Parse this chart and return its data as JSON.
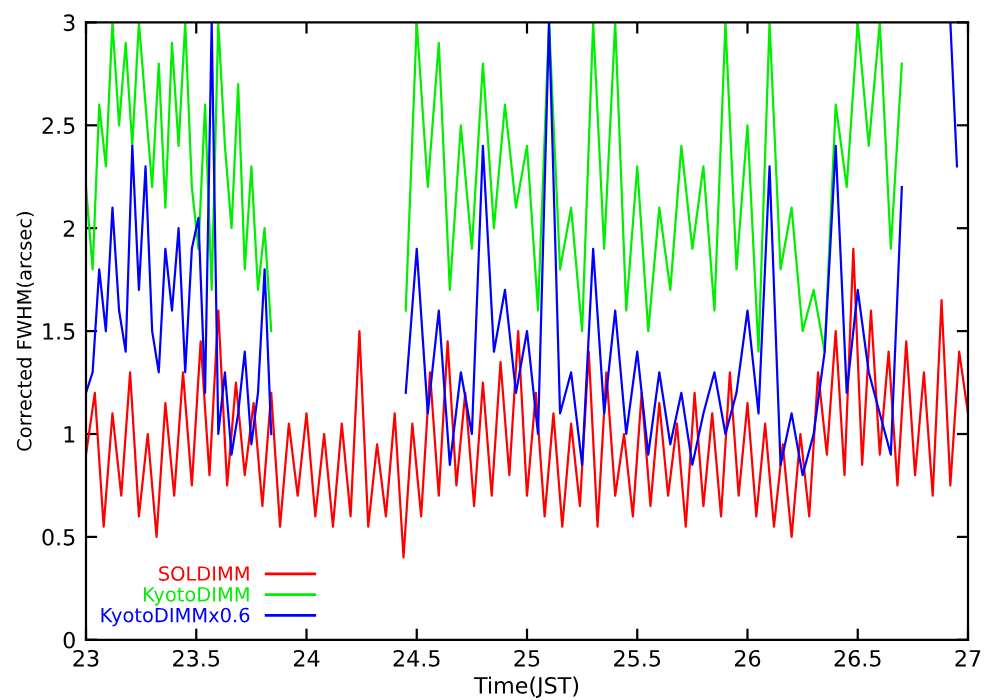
{
  "chart_data": {
    "type": "line",
    "xlabel": "Time(JST)",
    "ylabel": "Corrected FWHM(arcsec)",
    "xlim": [
      23,
      27
    ],
    "ylim": [
      0,
      3
    ],
    "xticks": [
      23,
      23.5,
      24,
      24.5,
      25,
      25.5,
      26,
      26.5,
      27
    ],
    "yticks": [
      0,
      0.5,
      1,
      1.5,
      2,
      2.5,
      3
    ],
    "grid": false,
    "legend": "bottom left",
    "marker": "none",
    "line_style": "solid",
    "series": [
      {
        "name": "SOLDIMM",
        "color": "#ff0000",
        "x": [
          23.0,
          23.04,
          23.08,
          23.12,
          23.16,
          23.2,
          23.24,
          23.28,
          23.32,
          23.36,
          23.4,
          23.44,
          23.48,
          23.52,
          23.56,
          23.6,
          23.64,
          23.68,
          23.72,
          23.76,
          23.8,
          23.84,
          23.88,
          23.92,
          23.96,
          24.0,
          24.04,
          24.08,
          24.12,
          24.16,
          24.2,
          24.24,
          24.28,
          24.32,
          24.36,
          24.4,
          24.44,
          24.48,
          24.52,
          24.56,
          24.6,
          24.64,
          24.68,
          24.72,
          24.76,
          24.8,
          24.84,
          24.88,
          24.92,
          24.96,
          25.0,
          25.04,
          25.08,
          25.12,
          25.16,
          25.2,
          25.24,
          25.28,
          25.32,
          25.36,
          25.4,
          25.44,
          25.48,
          25.52,
          25.56,
          25.6,
          25.64,
          25.68,
          25.72,
          25.76,
          25.8,
          25.84,
          25.88,
          25.92,
          25.96,
          26.0,
          26.04,
          26.08,
          26.12,
          26.16,
          26.2,
          26.24,
          26.28,
          26.32,
          26.36,
          26.4,
          26.44,
          26.48,
          26.52,
          26.56,
          26.6,
          26.64,
          26.68,
          26.72,
          26.76,
          26.8,
          26.84,
          26.88,
          26.92,
          26.96,
          27.0
        ],
        "values": [
          0.9,
          1.2,
          0.55,
          1.1,
          0.7,
          1.3,
          0.6,
          1.0,
          0.5,
          1.15,
          0.7,
          1.3,
          0.75,
          1.45,
          0.8,
          1.6,
          0.75,
          1.25,
          0.8,
          1.15,
          0.65,
          1.2,
          0.55,
          1.05,
          0.7,
          1.1,
          0.6,
          1.0,
          0.55,
          1.05,
          0.6,
          1.5,
          0.55,
          0.95,
          0.6,
          1.1,
          0.4,
          1.05,
          0.6,
          1.3,
          0.7,
          1.45,
          0.75,
          1.2,
          0.65,
          1.25,
          0.7,
          1.35,
          0.8,
          1.5,
          0.7,
          1.2,
          0.6,
          1.1,
          0.55,
          1.05,
          0.65,
          1.4,
          0.55,
          1.3,
          0.7,
          1.0,
          0.6,
          1.2,
          0.65,
          1.15,
          0.7,
          1.05,
          0.55,
          1.2,
          0.65,
          1.1,
          0.6,
          1.3,
          0.7,
          1.15,
          0.6,
          1.05,
          0.55,
          0.95,
          0.5,
          1.0,
          0.6,
          1.3,
          0.9,
          1.5,
          0.8,
          1.9,
          0.85,
          1.6,
          0.9,
          1.4,
          0.75,
          1.45,
          0.8,
          1.3,
          0.7,
          1.65,
          0.75,
          1.4,
          1.1
        ]
      },
      {
        "name": "KyotoDIMM",
        "color": "#00ee00",
        "x": [
          23.0,
          23.03,
          23.06,
          23.09,
          23.12,
          23.15,
          23.18,
          23.21,
          23.24,
          23.27,
          23.3,
          23.33,
          23.36,
          23.39,
          23.42,
          23.45,
          23.48,
          23.51,
          23.54,
          23.57,
          23.6,
          23.63,
          23.66,
          23.69,
          23.72,
          23.75,
          23.78,
          23.81,
          23.84,
          23.9,
          24.45,
          24.5,
          24.55,
          24.6,
          24.65,
          24.7,
          24.75,
          24.8,
          24.85,
          24.9,
          24.95,
          25.0,
          25.05,
          25.1,
          25.15,
          25.2,
          25.25,
          25.3,
          25.35,
          25.4,
          25.45,
          25.5,
          25.55,
          25.6,
          25.65,
          25.7,
          25.75,
          25.8,
          25.85,
          25.9,
          25.95,
          26.0,
          26.05,
          26.1,
          26.15,
          26.2,
          26.25,
          26.3,
          26.35,
          26.4,
          26.45,
          26.5,
          26.55,
          26.6,
          26.65,
          26.7
        ],
        "values": [
          2.2,
          1.8,
          2.6,
          2.3,
          3.0,
          2.5,
          2.9,
          2.4,
          3.0,
          2.6,
          2.2,
          2.8,
          2.1,
          2.9,
          2.4,
          3.0,
          2.2,
          1.9,
          2.6,
          1.7,
          3.0,
          2.4,
          2.0,
          2.7,
          1.8,
          2.3,
          1.7,
          2.0,
          1.5,
          null,
          1.6,
          3.0,
          2.2,
          2.9,
          1.7,
          2.5,
          1.9,
          2.8,
          2.0,
          2.6,
          2.1,
          2.4,
          1.6,
          3.0,
          1.8,
          2.1,
          1.5,
          3.0,
          1.9,
          3.0,
          1.6,
          2.3,
          1.5,
          2.1,
          1.7,
          2.4,
          1.9,
          2.3,
          1.6,
          3.0,
          1.8,
          2.5,
          1.4,
          3.0,
          1.8,
          2.1,
          1.5,
          1.7,
          1.4,
          2.6,
          2.2,
          3.0,
          2.4,
          3.0,
          1.9,
          2.8
        ]
      },
      {
        "name": "KyotoDIMMx0.6",
        "color": "#0000ff",
        "x": [
          23.0,
          23.03,
          23.06,
          23.09,
          23.12,
          23.15,
          23.18,
          23.21,
          23.24,
          23.27,
          23.3,
          23.33,
          23.36,
          23.39,
          23.42,
          23.45,
          23.48,
          23.51,
          23.54,
          23.57,
          23.6,
          23.63,
          23.66,
          23.69,
          23.72,
          23.75,
          23.78,
          23.81,
          23.84,
          23.9,
          24.45,
          24.5,
          24.55,
          24.6,
          24.65,
          24.7,
          24.75,
          24.8,
          24.85,
          24.9,
          24.95,
          25.0,
          25.05,
          25.1,
          25.15,
          25.2,
          25.25,
          25.3,
          25.35,
          25.4,
          25.45,
          25.5,
          25.55,
          25.6,
          25.65,
          25.7,
          25.75,
          25.8,
          25.85,
          25.9,
          25.95,
          26.0,
          26.05,
          26.1,
          26.15,
          26.2,
          26.25,
          26.3,
          26.35,
          26.4,
          26.45,
          26.5,
          26.55,
          26.6,
          26.65,
          26.7,
          26.75,
          26.92,
          26.95
        ],
        "values": [
          1.2,
          1.3,
          1.8,
          1.5,
          2.1,
          1.6,
          1.4,
          2.4,
          1.7,
          2.3,
          1.5,
          1.3,
          1.9,
          1.6,
          2.0,
          1.3,
          1.9,
          2.05,
          1.2,
          3.0,
          1.0,
          1.3,
          0.9,
          1.1,
          1.4,
          0.95,
          1.2,
          1.8,
          1.0,
          null,
          1.2,
          1.9,
          1.1,
          1.6,
          0.85,
          1.3,
          1.0,
          2.4,
          1.4,
          1.7,
          1.2,
          1.5,
          1.0,
          3.0,
          1.1,
          1.3,
          0.85,
          1.9,
          1.1,
          1.6,
          1.0,
          1.4,
          0.9,
          1.3,
          0.95,
          1.2,
          0.85,
          1.1,
          1.3,
          1.0,
          1.2,
          1.6,
          1.1,
          2.3,
          0.85,
          1.1,
          0.8,
          1.0,
          1.4,
          2.4,
          1.2,
          1.7,
          1.3,
          1.1,
          0.9,
          2.2,
          null,
          3.0,
          2.3
        ]
      }
    ]
  }
}
